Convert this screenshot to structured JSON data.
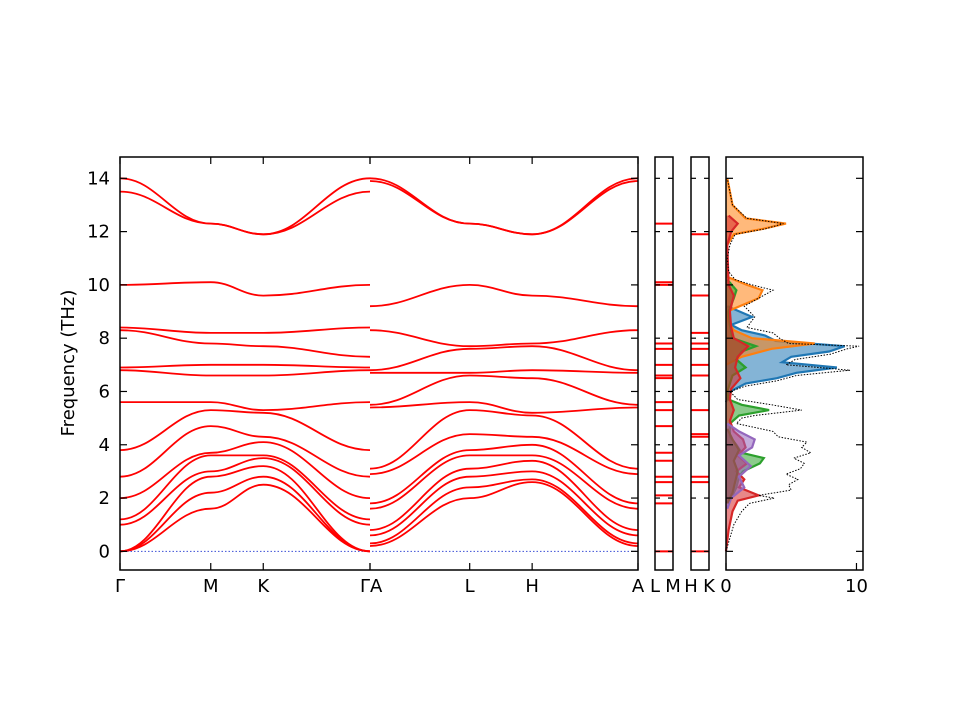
{
  "chart_data": [
    {
      "type": "line",
      "panel": "band-structure",
      "ylabel": "Frequency (THz)",
      "ylim": [
        -0.7,
        14.8
      ],
      "yticks": [
        "0",
        "2",
        "4",
        "6",
        "8",
        "10",
        "12",
        "14"
      ],
      "segments": [
        {
          "labels": [
            "Γ",
            "M",
            "K",
            "Γ"
          ],
          "label_positions": [
            0,
            0.363,
            0.573,
            1
          ],
          "levels_at_labels": [
            [
              0,
              0,
              0,
              1.0,
              1.2,
              2.0,
              2.8,
              3.8,
              5.6,
              6.8,
              6.9,
              8.3,
              8.4,
              10.0,
              13.5,
              14.0
            ],
            [
              1.6,
              2.2,
              2.8,
              3.0,
              3.6,
              3.7,
              4.7,
              5.3,
              5.6,
              6.6,
              7.0,
              7.8,
              8.2,
              10.1,
              12.3,
              12.3
            ],
            [
              2.5,
              2.8,
              3.2,
              3.5,
              3.6,
              4.1,
              4.3,
              5.2,
              5.3,
              6.6,
              7.0,
              7.7,
              8.2,
              9.6,
              11.9,
              11.9
            ],
            [
              0,
              0,
              0,
              1.0,
              1.2,
              2.0,
              2.8,
              3.8,
              5.6,
              6.8,
              6.9,
              7.3,
              8.4,
              10.0,
              13.5,
              14.0
            ]
          ]
        },
        {
          "labels": [
            "A",
            "L",
            "H",
            "A"
          ],
          "label_positions": [
            0,
            0.372,
            0.605,
            1
          ],
          "levels_at_labels": [
            [
              0.2,
              0.3,
              0.6,
              0.8,
              1.6,
              1.8,
              2.9,
              3.1,
              5.4,
              5.5,
              6.7,
              6.8,
              8.3,
              9.2,
              13.9,
              14.0
            ],
            [
              2.0,
              2.4,
              2.8,
              3.1,
              3.6,
              3.8,
              4.4,
              5.3,
              5.6,
              6.6,
              6.7,
              7.6,
              7.7,
              10.0,
              12.3,
              12.3
            ],
            [
              2.6,
              2.7,
              3.0,
              3.4,
              3.6,
              4.0,
              4.3,
              5.1,
              5.2,
              6.5,
              6.8,
              7.7,
              7.8,
              9.6,
              11.9,
              11.9
            ],
            [
              0.2,
              0.3,
              0.6,
              0.8,
              1.6,
              1.8,
              2.9,
              3.1,
              5.4,
              5.5,
              6.7,
              6.8,
              8.3,
              9.2,
              13.9,
              14.0
            ]
          ]
        }
      ]
    },
    {
      "type": "line",
      "panel": "single-point-L-M",
      "xlabels": [
        "L",
        "M"
      ],
      "levels": [
        0,
        1.8,
        2.1,
        2.6,
        2.8,
        3.4,
        3.7,
        4.7,
        5.3,
        5.6,
        6.5,
        6.6,
        7.0,
        7.6,
        7.8,
        10.0,
        10.1,
        12.3
      ]
    },
    {
      "type": "line",
      "panel": "single-point-H-K",
      "xlabels": [
        "H",
        "K"
      ],
      "levels": [
        0,
        2.6,
        2.8,
        4.3,
        4.4,
        5.3,
        6.6,
        7.0,
        7.6,
        7.8,
        8.2,
        9.6,
        11.9
      ]
    },
    {
      "type": "area",
      "panel": "density-of-states",
      "xlim": [
        0,
        10.5
      ],
      "xticks": [
        "0",
        "10"
      ],
      "ylim": [
        -0.7,
        14.8
      ],
      "total_dos": {
        "name": "total",
        "style": "dotted",
        "freq": [
          0,
          0.5,
          1.0,
          1.5,
          1.8,
          2.0,
          2.1,
          2.3,
          2.5,
          2.7,
          2.9,
          3.1,
          3.3,
          3.5,
          3.7,
          3.9,
          4.1,
          4.3,
          4.5,
          4.8,
          5.0,
          5.1,
          5.3,
          5.5,
          5.7,
          6.0,
          6.2,
          6.4,
          6.6,
          6.8,
          7.0,
          7.2,
          7.4,
          7.6,
          7.7,
          7.8,
          8.0,
          8.2,
          8.4,
          8.8,
          9.2,
          9.5,
          9.8,
          10.0,
          10.2,
          10.5,
          11.0,
          11.5,
          11.9,
          12.1,
          12.3,
          12.5,
          13.0,
          13.5,
          14.0
        ],
        "dos": [
          0,
          0.3,
          0.6,
          1.2,
          1.8,
          3.7,
          2.5,
          5.0,
          4.8,
          5.5,
          4.6,
          5.7,
          6.0,
          5.2,
          6.5,
          5.8,
          6.2,
          4.0,
          3.6,
          0.8,
          1.2,
          2.2,
          5.8,
          3.5,
          0.9,
          0.3,
          1.5,
          3.9,
          5.4,
          9.5,
          4.6,
          5.3,
          8.0,
          9.3,
          10.2,
          4.8,
          4.1,
          3.6,
          1.6,
          2.2,
          1.4,
          2.5,
          3.6,
          2.0,
          0.7,
          0.2,
          0.1,
          0.3,
          0.7,
          3.0,
          4.4,
          1.6,
          0.5,
          0.3,
          0.1
        ]
      },
      "partial_dos": [
        {
          "name": "",
          "color": "#1f77b4",
          "freq": [
            5.6,
            6.0,
            6.3,
            6.5,
            6.7,
            6.9,
            7.1,
            7.3,
            7.5,
            7.7,
            7.9,
            8.1,
            8.3,
            8.5,
            8.8,
            9.2
          ],
          "dos": [
            0,
            0.3,
            1.5,
            3.9,
            5.4,
            8.5,
            4.3,
            5.0,
            7.9,
            9.1,
            3.8,
            3.0,
            1.2,
            0.4,
            2.0,
            0.1
          ]
        },
        {
          "name": "",
          "color": "#ff7f0e",
          "freq": [
            7.0,
            7.3,
            7.6,
            7.8,
            8.0,
            8.3,
            8.6,
            9.0,
            9.5,
            9.8,
            10.0,
            10.3,
            11.5,
            11.9,
            12.1,
            12.3,
            12.5,
            13.0,
            13.5,
            14.0
          ],
          "dos": [
            0,
            1.2,
            3.5,
            6.8,
            2.0,
            0.6,
            0.2,
            0.1,
            2.5,
            2.8,
            1.6,
            0.1,
            0.1,
            0.6,
            2.8,
            4.6,
            1.5,
            0.5,
            0.3,
            0.1
          ]
        },
        {
          "name": "",
          "color": "#2ca02c",
          "freq": [
            1.8,
            2.1,
            2.4,
            2.8,
            3.0,
            3.3,
            3.5,
            3.7,
            4.0,
            4.3,
            4.8,
            5.1,
            5.3,
            5.5,
            5.7,
            6.0,
            6.6,
            6.9,
            7.2,
            7.5,
            7.7,
            8.0,
            8.5,
            9.0,
            9.5,
            9.8,
            10.2
          ],
          "dos": [
            0.2,
            0.5,
            0.8,
            1.0,
            1.3,
            2.6,
            2.9,
            1.2,
            0.8,
            0.3,
            0.3,
            1.0,
            3.3,
            1.2,
            0.2,
            0.1,
            0.5,
            1.5,
            0.8,
            1.2,
            2.3,
            0.5,
            0.3,
            0.2,
            0.6,
            0.8,
            0.1
          ]
        },
        {
          "name": "",
          "color": "#d62728",
          "freq": [
            0,
            0.8,
            1.5,
            1.9,
            2.1,
            2.4,
            2.7,
            3.0,
            3.3,
            3.6,
            3.9,
            4.2,
            4.5,
            4.9,
            5.3,
            5.7,
            6.1,
            6.5,
            6.9,
            7.3,
            7.7,
            8.0,
            8.4,
            9.0,
            9.6,
            10.0,
            11.5,
            12.0,
            12.3,
            12.6
          ],
          "dos": [
            0,
            0.2,
            0.5,
            0.9,
            2.5,
            1.0,
            1.4,
            0.8,
            1.6,
            0.9,
            1.5,
            1.3,
            0.6,
            0.3,
            0.6,
            0.3,
            0.4,
            1.1,
            0.7,
            0.9,
            1.7,
            0.6,
            0.4,
            0.3,
            0.6,
            0.2,
            0.1,
            0.4,
            0.9,
            0.2
          ]
        },
        {
          "name": "",
          "color": "#9467bd",
          "freq": [
            1.6,
            2.0,
            2.4,
            2.8,
            3.2,
            3.6,
            3.9,
            4.2,
            4.5,
            4.8
          ],
          "dos": [
            0.1,
            0.4,
            1.4,
            1.0,
            1.9,
            1.0,
            2.0,
            2.2,
            1.0,
            0.1
          ]
        },
        {
          "name": "",
          "color": "#8c564b",
          "freq": [
            1.8,
            2.2,
            2.6,
            3.0,
            3.4,
            3.8,
            4.2,
            4.6
          ],
          "dos": [
            0.1,
            0.5,
            0.7,
            0.9,
            0.6,
            1.0,
            0.5,
            0.1
          ]
        }
      ]
    }
  ]
}
